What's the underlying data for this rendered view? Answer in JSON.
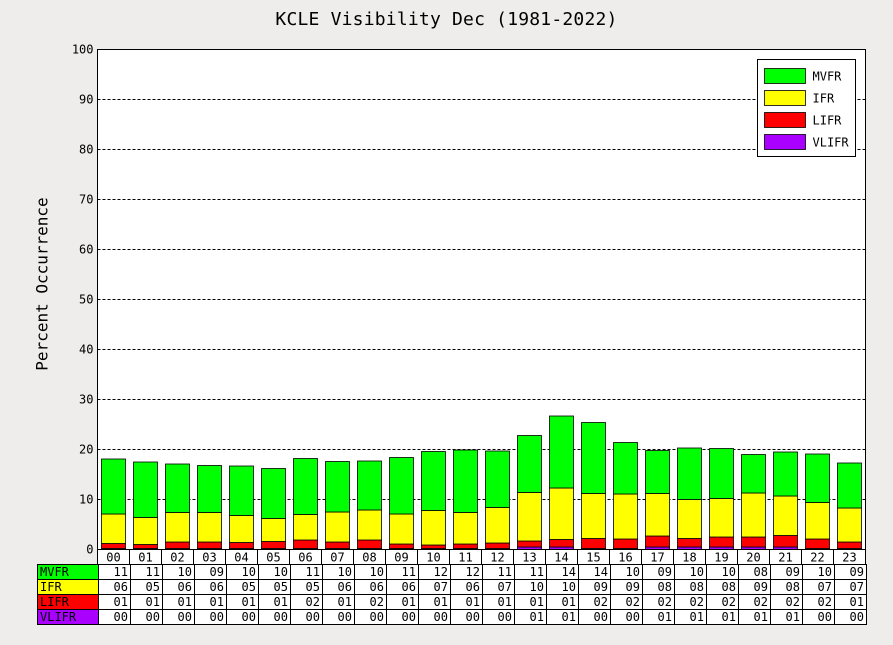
{
  "chart_data": {
    "type": "bar",
    "stacked": true,
    "title": "KCLE Visibility Dec (1981-2022)",
    "xlabel": "",
    "ylabel": "Percent Occurrence",
    "ylim": [
      0,
      100
    ],
    "yticks": [
      0,
      10,
      20,
      30,
      40,
      50,
      60,
      70,
      80,
      90,
      100
    ],
    "grid": "horizontal dashed",
    "legend_position": "top-right",
    "categories": [
      "00",
      "01",
      "02",
      "03",
      "04",
      "05",
      "06",
      "07",
      "08",
      "09",
      "10",
      "11",
      "12",
      "13",
      "14",
      "15",
      "16",
      "17",
      "18",
      "19",
      "20",
      "21",
      "22",
      "23"
    ],
    "series": [
      {
        "name": "VLIFR",
        "color": "#aa00ff",
        "values": [
          0.2,
          0.2,
          0.2,
          0.2,
          0.2,
          0.2,
          0.2,
          0.2,
          0.2,
          0.2,
          0.2,
          0.2,
          0.2,
          0.5,
          0.5,
          0.2,
          0.2,
          0.5,
          0.5,
          0.5,
          0.5,
          0.5,
          0.2,
          0.2
        ]
      },
      {
        "name": "LIFR",
        "color": "#ff0000",
        "values": [
          1.0,
          0.8,
          1.3,
          1.3,
          1.2,
          1.4,
          1.7,
          1.3,
          1.7,
          0.9,
          0.7,
          0.9,
          1.1,
          1.2,
          1.5,
          2.0,
          1.9,
          2.2,
          1.7,
          2.0,
          2.0,
          2.3,
          1.9,
          1.3
        ]
      },
      {
        "name": "IFR",
        "color": "#ffff00",
        "values": [
          5.9,
          5.4,
          5.9,
          5.9,
          5.4,
          4.6,
          5.1,
          6.0,
          6.0,
          6.0,
          6.9,
          6.3,
          7.1,
          9.7,
          10.3,
          9.0,
          9.0,
          8.5,
          7.8,
          7.7,
          8.8,
          7.9,
          7.3,
          6.8
        ]
      },
      {
        "name": "MVFR",
        "color": "#00ff00",
        "values": [
          11.0,
          11.1,
          9.7,
          9.4,
          9.9,
          10.0,
          11.2,
          10.1,
          9.8,
          11.3,
          11.8,
          12.5,
          11.3,
          11.4,
          14.4,
          14.2,
          10.3,
          8.6,
          10.3,
          10.0,
          7.7,
          8.8,
          9.7,
          9.0
        ]
      }
    ]
  },
  "table": {
    "rows": [
      {
        "label": "MVFR",
        "color": "#00ff00",
        "cells": [
          "11",
          "11",
          "10",
          "09",
          "10",
          "10",
          "11",
          "10",
          "10",
          "11",
          "12",
          "12",
          "11",
          "11",
          "14",
          "14",
          "10",
          "09",
          "10",
          "10",
          "08",
          "09",
          "10",
          "09"
        ]
      },
      {
        "label": "IFR",
        "color": "#ffff00",
        "cells": [
          "06",
          "05",
          "06",
          "06",
          "05",
          "05",
          "05",
          "06",
          "06",
          "06",
          "07",
          "06",
          "07",
          "10",
          "10",
          "09",
          "09",
          "08",
          "08",
          "08",
          "09",
          "08",
          "07",
          "07"
        ]
      },
      {
        "label": "LIFR",
        "color": "#ff0000",
        "cells": [
          "01",
          "01",
          "01",
          "01",
          "01",
          "01",
          "02",
          "01",
          "02",
          "01",
          "01",
          "01",
          "01",
          "01",
          "01",
          "02",
          "02",
          "02",
          "02",
          "02",
          "02",
          "02",
          "02",
          "01"
        ]
      },
      {
        "label": "VLIFR",
        "color": "#aa00ff",
        "cells": [
          "00",
          "00",
          "00",
          "00",
          "00",
          "00",
          "00",
          "00",
          "00",
          "00",
          "00",
          "00",
          "00",
          "01",
          "01",
          "00",
          "00",
          "01",
          "01",
          "01",
          "01",
          "01",
          "00",
          "00"
        ]
      }
    ]
  }
}
